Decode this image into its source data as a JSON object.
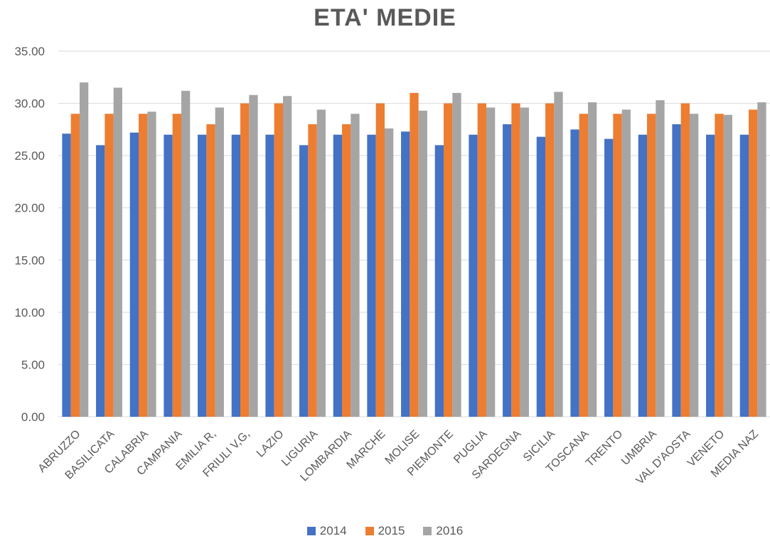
{
  "chart_data": {
    "type": "bar",
    "title": "ETA' MEDIE",
    "xlabel": "",
    "ylabel": "",
    "ylim": [
      0,
      35
    ],
    "yticks": [
      "0.00",
      "5.00",
      "10.00",
      "15.00",
      "20.00",
      "25.00",
      "30.00",
      "35.00"
    ],
    "grid": true,
    "legend_position": "bottom",
    "categories": [
      "ABRUZZO",
      "BASILICATA",
      "CALABRIA",
      "CAMPANIA",
      "EMILIA R,",
      "FRIULI V,G,",
      "LAZIO",
      "LIGURIA",
      "LOMBARDIA",
      "MARCHE",
      "MOLISE",
      "PIEMONTE",
      "PUGLIA",
      "SARDEGNA",
      "SICILIA",
      "TOSCANA",
      "TRENTO",
      "UMBRIA",
      "VAL D'AOSTA",
      "VENETO",
      "MEDIA NAZ"
    ],
    "series": [
      {
        "name": "2014",
        "color": "#4472c4",
        "values": [
          27.1,
          26.0,
          27.2,
          27.0,
          27.0,
          27.0,
          27.0,
          26.0,
          27.0,
          27.0,
          27.3,
          26.0,
          27.0,
          28.0,
          26.8,
          27.5,
          26.6,
          27.0,
          28.0,
          27.0,
          27.0
        ]
      },
      {
        "name": "2015",
        "color": "#ed7d31",
        "values": [
          29.0,
          29.0,
          29.0,
          29.0,
          28.0,
          30.0,
          30.0,
          28.0,
          28.0,
          30.0,
          31.0,
          30.0,
          30.0,
          30.0,
          30.0,
          29.0,
          29.0,
          29.0,
          30.0,
          29.0,
          29.4
        ]
      },
      {
        "name": "2016",
        "color": "#a5a5a5",
        "values": [
          32.0,
          31.5,
          29.2,
          31.2,
          29.6,
          30.8,
          30.7,
          29.4,
          29.0,
          27.6,
          29.3,
          31.0,
          29.6,
          29.6,
          31.1,
          30.1,
          29.4,
          30.3,
          29.0,
          28.9,
          30.1
        ]
      }
    ]
  }
}
